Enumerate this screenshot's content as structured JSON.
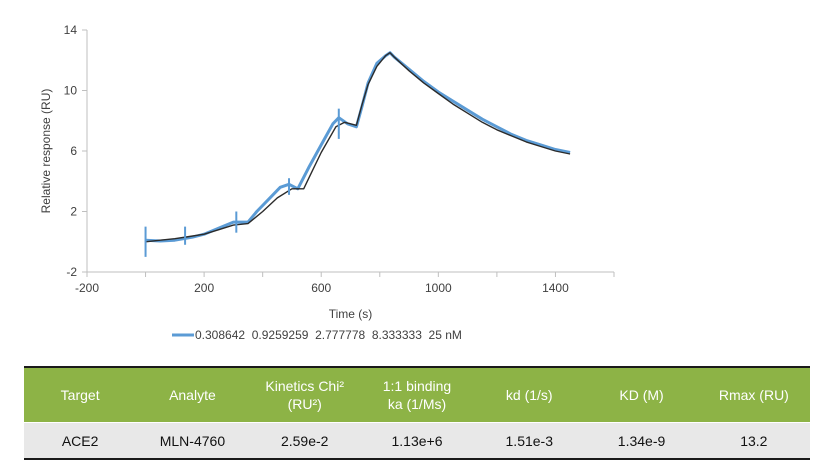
{
  "chart_data": {
    "type": "line",
    "xlabel": "Time (s)",
    "ylabel": "Relative response (RU)",
    "xlim": [
      -200,
      1600
    ],
    "ylim": [
      -2,
      14
    ],
    "x_ticks": [
      "-200",
      "200",
      "600",
      "1000",
      "1400"
    ],
    "y_ticks": [
      "-2",
      "2",
      "6",
      "10",
      "14"
    ],
    "grid": false,
    "legend_text": "0.308642  0.9259259  2.777778  8.333333  25 nM",
    "legend_position": "bottom",
    "colors": {
      "measured": "#5b9bd5",
      "fit": "#2b2b2b"
    },
    "series": [
      {
        "name": "0.308642  0.9259259  2.777778  8.333333  25 nM",
        "role": "measured",
        "x": [
          0,
          50,
          100,
          130,
          160,
          200,
          250,
          300,
          320,
          350,
          380,
          420,
          460,
          490,
          520,
          560,
          600,
          640,
          660,
          690,
          720,
          740,
          760,
          790,
          820,
          835,
          850,
          900,
          950,
          1000,
          1050,
          1100,
          1150,
          1200,
          1250,
          1300,
          1350,
          1400,
          1450
        ],
        "y": [
          0.1,
          0.05,
          0.1,
          0.2,
          0.3,
          0.5,
          0.9,
          1.3,
          1.3,
          1.3,
          2.0,
          2.8,
          3.6,
          3.8,
          3.5,
          5.0,
          6.4,
          7.8,
          8.2,
          7.8,
          7.6,
          9.0,
          10.5,
          11.8,
          12.3,
          12.5,
          12.2,
          11.4,
          10.6,
          9.9,
          9.3,
          8.7,
          8.1,
          7.6,
          7.1,
          6.7,
          6.4,
          6.1,
          5.9
        ]
      },
      {
        "name": "",
        "role": "fit",
        "x": [
          0,
          50,
          100,
          150,
          200,
          250,
          300,
          350,
          400,
          450,
          500,
          540,
          560,
          600,
          650,
          680,
          700,
          720,
          740,
          760,
          790,
          820,
          835,
          850,
          900,
          950,
          1000,
          1050,
          1100,
          1150,
          1200,
          1250,
          1300,
          1350,
          1400,
          1450
        ],
        "y": [
          0.0,
          0.1,
          0.2,
          0.35,
          0.5,
          0.8,
          1.1,
          1.2,
          2.0,
          2.9,
          3.5,
          3.5,
          4.3,
          5.9,
          7.6,
          7.9,
          7.8,
          7.7,
          9.1,
          10.4,
          11.6,
          12.3,
          12.5,
          12.2,
          11.3,
          10.5,
          9.8,
          9.1,
          8.5,
          7.9,
          7.4,
          7.0,
          6.6,
          6.3,
          6.0,
          5.8
        ]
      }
    ],
    "spikes": [
      {
        "x": 0,
        "ymin": -1.0,
        "ymax": 1.0
      },
      {
        "x": 135,
        "ymin": -0.2,
        "ymax": 1.0
      },
      {
        "x": 310,
        "ymin": 0.6,
        "ymax": 2.0
      },
      {
        "x": 490,
        "ymin": 3.1,
        "ymax": 4.2
      },
      {
        "x": 660,
        "ymin": 6.8,
        "ymax": 8.8
      }
    ]
  },
  "table": {
    "headers": [
      [
        "Target"
      ],
      [
        "Analyte"
      ],
      [
        "Kinetics Chi²",
        "(RU²)"
      ],
      [
        "1:1 binding",
        "ka (1/Ms)"
      ],
      [
        "kd (1/s)"
      ],
      [
        "KD (M)"
      ],
      [
        "Rmax (RU)"
      ]
    ],
    "rows": [
      [
        "ACE2",
        "MLN-4760",
        "2.59e-2",
        "1.13e+6",
        "1.51e-3",
        "1.34e-9",
        "13.2"
      ]
    ],
    "header_color": "#8db346"
  }
}
